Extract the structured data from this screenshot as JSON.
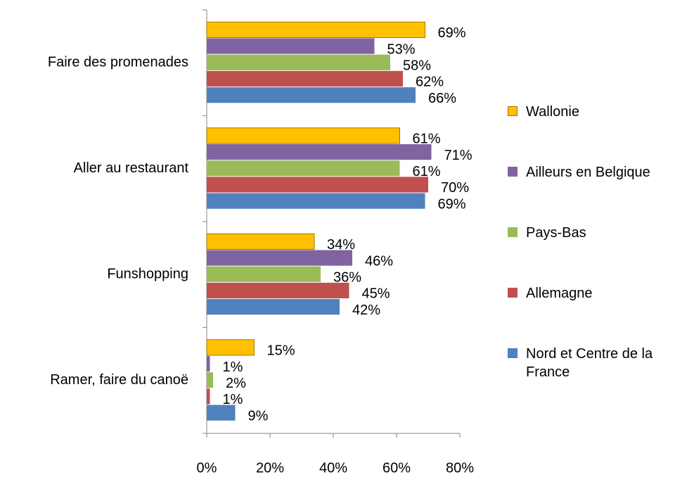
{
  "chart_data": {
    "type": "bar",
    "orientation": "horizontal",
    "categories": [
      "Faire des promenades",
      "Aller au restaurant",
      "Funshopping",
      "Ramer, faire du canoë"
    ],
    "series": [
      {
        "name": "Wallonie",
        "color": "#ffc000",
        "values": [
          69,
          61,
          34,
          15
        ],
        "value_labels": [
          "69%",
          "61%",
          "34%",
          "15%"
        ]
      },
      {
        "name": "Ailleurs en Belgique",
        "color": "#8064a2",
        "values": [
          53,
          71,
          46,
          1
        ],
        "value_labels": [
          "53%",
          "71%",
          "46%",
          "1%"
        ]
      },
      {
        "name": "Pays-Bas",
        "color": "#9bbb59",
        "values": [
          58,
          61,
          36,
          2
        ],
        "value_labels": [
          "58%",
          "61%",
          "36%",
          "2%"
        ]
      },
      {
        "name": "Allemagne",
        "color": "#c0504d",
        "values": [
          62,
          70,
          45,
          1
        ],
        "value_labels": [
          "62%",
          "70%",
          "45%",
          "1%"
        ]
      },
      {
        "name": "Nord et Centre de la France",
        "color": "#4f81bd",
        "values": [
          66,
          69,
          42,
          9
        ],
        "value_labels": [
          "66%",
          "69%",
          "42%",
          "9%"
        ]
      }
    ],
    "xlim": [
      0,
      80
    ],
    "xticks": [
      {
        "value": 0,
        "label": "0%"
      },
      {
        "value": 20,
        "label": "20%"
      },
      {
        "value": 40,
        "label": "40%"
      },
      {
        "value": 60,
        "label": "60%"
      },
      {
        "value": 80,
        "label": "80%"
      }
    ],
    "grid": false,
    "legend": "right"
  }
}
